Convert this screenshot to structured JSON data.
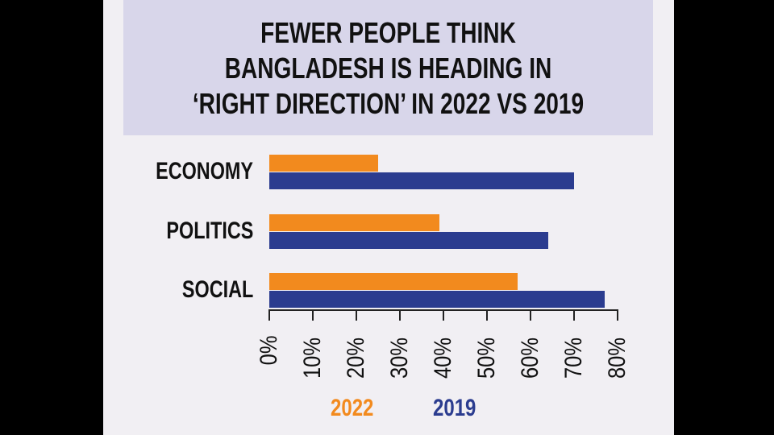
{
  "chart_data": {
    "type": "bar",
    "orientation": "horizontal",
    "title_lines": [
      "FEWER PEOPLE THINK",
      "BANGLADESH IS HEADING IN",
      "‘RIGHT DIRECTION’ IN 2022 VS 2019"
    ],
    "categories": [
      "ECONOMY",
      "POLITICS",
      "SOCIAL"
    ],
    "series": [
      {
        "name": "2022",
        "color": "#f28a1e",
        "values": [
          25,
          39,
          57
        ]
      },
      {
        "name": "2019",
        "color": "#2b3c8f",
        "values": [
          70,
          64,
          77
        ]
      }
    ],
    "xlim": [
      0,
      80
    ],
    "xticks": [
      "0%",
      "10%",
      "20%",
      "30%",
      "40%",
      "50%",
      "60%",
      "70%",
      "80%"
    ],
    "legend_position": "bottom",
    "grid": false
  }
}
